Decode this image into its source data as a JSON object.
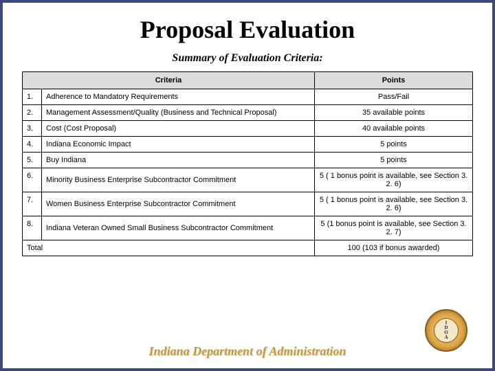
{
  "title": "Proposal Evaluation",
  "subtitle": "Summary of Evaluation Criteria:",
  "table": {
    "headers": {
      "criteria": "Criteria",
      "points": "Points"
    },
    "rows": [
      {
        "num": "1.",
        "criteria": "Adherence to Mandatory Requirements",
        "points": "Pass/Fail"
      },
      {
        "num": "2.",
        "criteria": "Management Assessment/Quality (Business and Technical Proposal)",
        "points": "35 available points"
      },
      {
        "num": "3.",
        "criteria": "Cost (Cost Proposal)",
        "points": "40 available points"
      },
      {
        "num": "4.",
        "criteria": "Indiana Economic Impact",
        "points": "5 points"
      },
      {
        "num": "5.",
        "criteria": "Buy Indiana",
        "points": "5 points"
      },
      {
        "num": "6.",
        "criteria": "Minority Business Enterprise Subcontractor Commitment",
        "points": "5 ( 1 bonus point is available, see Section 3. 2. 6)"
      },
      {
        "num": "7.",
        "criteria": "Women Business Enterprise Subcontractor Commitment",
        "points": "5 ( 1 bonus point is available, see Section 3. 2. 6)"
      },
      {
        "num": "8.",
        "criteria": "Indiana Veteran Owned Small Business Subcontractor Commitment",
        "points": "5 (1 bonus point is available, see Section 3. 2. 7)"
      }
    ],
    "total": {
      "label": "Total",
      "points": "100 (103 if bonus awarded)"
    }
  },
  "footer": "Indiana Department of Administration",
  "seal": {
    "l1": "I",
    "l2": "D",
    "l3": "O",
    "l4": "A"
  },
  "colors": {
    "border": "#3b4a7a",
    "header_bg": "#dcdcdc",
    "footer_text": "#c69a3a"
  }
}
